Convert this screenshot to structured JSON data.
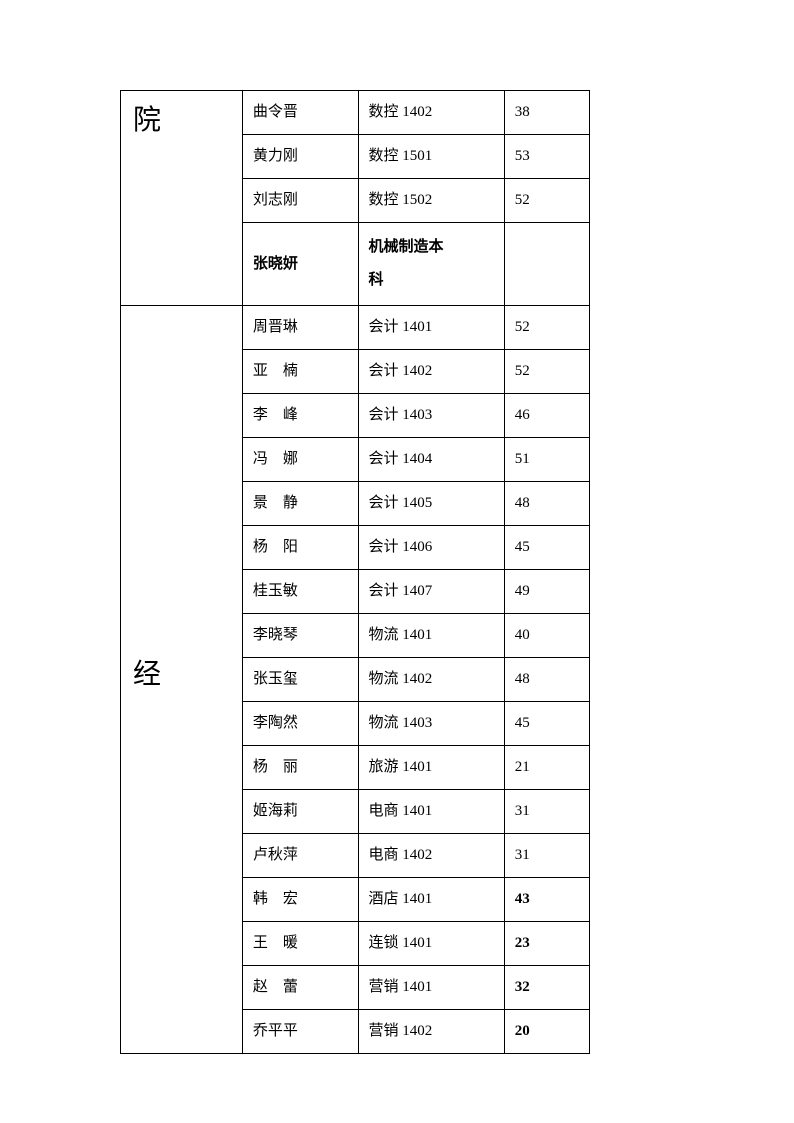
{
  "sections": [
    {
      "dept": "院",
      "deptClass": "col-dept",
      "rows": [
        {
          "name": "曲令晋",
          "class": "数控 1402",
          "num": "38",
          "bold": false
        },
        {
          "name": "黄力刚",
          "class": "数控 1501",
          "num": "53",
          "bold": false
        },
        {
          "name": "刘志刚",
          "class": "数控 1502",
          "num": "52",
          "bold": false
        },
        {
          "name": "张晓妍",
          "class": "机械制造本科",
          "num": "",
          "bold": true,
          "multiline": true
        }
      ]
    },
    {
      "dept": "经",
      "deptClass": "col-dept col-dept-mid",
      "rows": [
        {
          "name": "周晋琳",
          "class": "会计 1401",
          "num": "52",
          "bold": false
        },
        {
          "name": "亚　楠",
          "class": "会计 1402",
          "num": "52",
          "bold": false
        },
        {
          "name": "李　峰",
          "class": "会计 1403",
          "num": "46",
          "bold": false
        },
        {
          "name": "冯　娜",
          "class": "会计 1404",
          "num": "51",
          "bold": false
        },
        {
          "name": "景　静",
          "class": "会计 1405",
          "num": "48",
          "bold": false
        },
        {
          "name": "杨　阳",
          "class": "会计 1406",
          "num": "45",
          "bold": false
        },
        {
          "name": "桂玉敏",
          "class": "会计 1407",
          "num": "49",
          "bold": false
        },
        {
          "name": "李晓琴",
          "class": "物流 1401",
          "num": "40",
          "bold": false
        },
        {
          "name": "张玉玺",
          "class": "物流 1402",
          "num": "48",
          "bold": false
        },
        {
          "name": "李陶然",
          "class": "物流 1403",
          "num": "45",
          "bold": false
        },
        {
          "name": "杨　丽",
          "class": "旅游 1401",
          "num": "21",
          "bold": false
        },
        {
          "name": "姬海莉",
          "class": "电商 1401",
          "num": "31",
          "bold": false
        },
        {
          "name": "卢秋萍",
          "class": "电商 1402",
          "num": "31",
          "bold": false
        },
        {
          "name": "韩　宏",
          "class": "酒店 1401",
          "num": "43",
          "bold": false,
          "numBold": true
        },
        {
          "name": "王　暖",
          "class": "连锁 1401",
          "num": "23",
          "bold": false,
          "numBold": true
        },
        {
          "name": "赵　蕾",
          "class": "营销 1401",
          "num": "32",
          "bold": false,
          "numBold": true
        },
        {
          "name": "乔平平",
          "class": "营销 1402",
          "num": "20",
          "bold": false,
          "numBold": true
        }
      ]
    }
  ]
}
